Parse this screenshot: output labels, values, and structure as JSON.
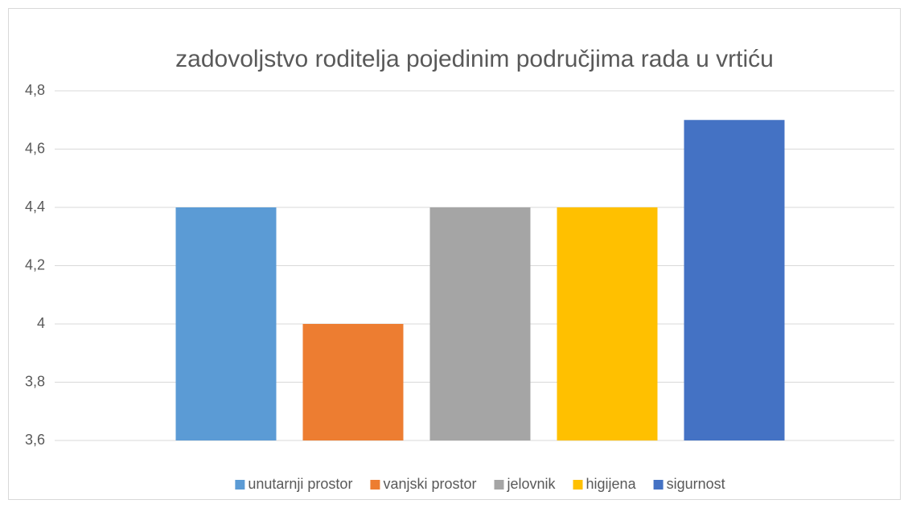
{
  "chart_data": {
    "type": "bar",
    "title": "zadovoljstvo roditelja pojedinim područjima rada u vrtiću",
    "categories": [
      null
    ],
    "series": [
      {
        "name": "unutarnji prostor",
        "color": "#5b9bd5",
        "values": [
          4.4
        ]
      },
      {
        "name": "vanjski prostor",
        "color": "#ed7d31",
        "values": [
          4.0
        ]
      },
      {
        "name": "jelovnik",
        "color": "#a5a5a5",
        "values": [
          4.4
        ]
      },
      {
        "name": "higijena",
        "color": "#ffc000",
        "values": [
          4.4
        ]
      },
      {
        "name": "sigurnost",
        "color": "#4472c4",
        "values": [
          4.7
        ]
      }
    ],
    "ylim": [
      3.6,
      4.8
    ],
    "yticks": [
      {
        "value": 3.6,
        "label": "3,6"
      },
      {
        "value": 3.8,
        "label": "3,8"
      },
      4,
      {
        "value": 4.2,
        "label": "4,2"
      },
      {
        "value": 4.4,
        "label": "4,4"
      },
      {
        "value": 4.6,
        "label": "4,6"
      },
      {
        "value": 4.8,
        "label": "4,8"
      }
    ],
    "grid": true,
    "legend": "bottom"
  }
}
